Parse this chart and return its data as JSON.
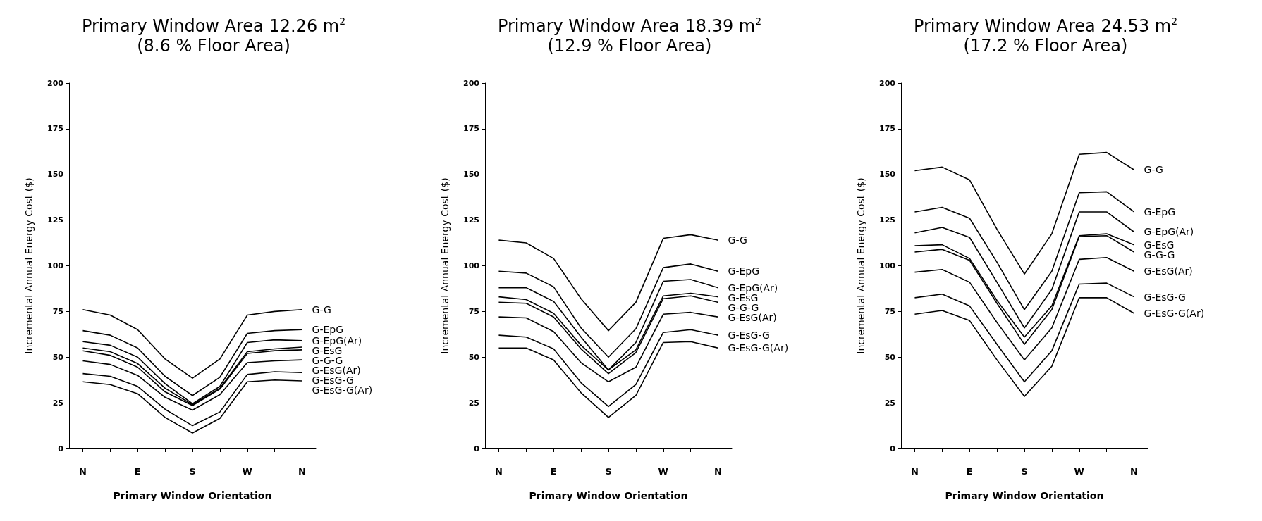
{
  "chart_data": [
    {
      "type": "line",
      "title": "Primary Window Area 12.26 m$^{2}$\n(8.6 % Floor Area)",
      "xlabel": "Primary Window Orientation",
      "ylabel": "Incremental Annual Energy Cost ($)",
      "categories": [
        "N",
        null,
        "E",
        null,
        "S",
        null,
        "W",
        null,
        "N"
      ],
      "ylim": [
        0,
        200
      ],
      "yticks": [
        0,
        25,
        50,
        75,
        100,
        125,
        150,
        175,
        200
      ],
      "grid": false,
      "legend": false,
      "marker": "none",
      "series": [
        {
          "name": "G-G",
          "color": "#000000",
          "values": [
            76,
            73,
            65,
            49,
            38.5,
            49,
            73,
            75,
            76
          ]
        },
        {
          "name": "G-EpG",
          "color": "#000000",
          "values": [
            64.5,
            62,
            55,
            39.5,
            29,
            39,
            63,
            64.5,
            65
          ]
        },
        {
          "name": "G-EpG(Ar)",
          "color": "#000000",
          "values": [
            58.5,
            56.5,
            50,
            35.5,
            24.5,
            34,
            58,
            59.5,
            59
          ]
        },
        {
          "name": "G-EsG",
          "color": "#000000",
          "values": [
            55,
            53,
            46.5,
            33,
            24,
            33,
            53,
            54.5,
            55.5
          ]
        },
        {
          "name": "G-G-G",
          "color": "#000000",
          "values": [
            53.5,
            51,
            44.5,
            31,
            23.5,
            32.5,
            52,
            53.5,
            54
          ]
        },
        {
          "name": "G-EsG(Ar)",
          "color": "#000000",
          "values": [
            48,
            46,
            40,
            28,
            21,
            29.5,
            47,
            48,
            48.5
          ]
        },
        {
          "name": "G-EsG-G",
          "color": "#000000",
          "values": [
            41,
            39.5,
            34,
            21.5,
            12.5,
            20,
            40.5,
            42,
            41.5
          ]
        },
        {
          "name": "G-EsG-G(Ar)",
          "color": "#000000",
          "values": [
            36.5,
            35,
            30,
            17,
            8.5,
            16.5,
            36.5,
            37.5,
            37
          ]
        }
      ]
    },
    {
      "type": "line",
      "title": "Primary Window Area 18.39 m$^{2}$\n(12.9 % Floor Area)",
      "xlabel": "Primary Window Orientation",
      "ylabel": "Incremental Annual Energy Cost ($)",
      "categories": [
        "N",
        null,
        "E",
        null,
        "S",
        null,
        "W",
        null,
        "N"
      ],
      "ylim": [
        0,
        200
      ],
      "yticks": [
        0,
        25,
        50,
        75,
        100,
        125,
        150,
        175,
        200
      ],
      "grid": false,
      "legend": false,
      "marker": "none",
      "series": [
        {
          "name": "G-G",
          "color": "#000000",
          "values": [
            114,
            112.5,
            104,
            82,
            64.5,
            80,
            115,
            117,
            114
          ]
        },
        {
          "name": "G-EpG",
          "color": "#000000",
          "values": [
            97,
            96,
            88.5,
            66,
            50,
            65.5,
            99,
            101,
            97
          ]
        },
        {
          "name": "G-EpG(Ar)",
          "color": "#000000",
          "values": [
            88,
            88,
            80.5,
            61,
            43,
            58,
            91.5,
            92.5,
            88
          ]
        },
        {
          "name": "G-EsG",
          "color": "#000000",
          "values": [
            83,
            81.5,
            74,
            56.5,
            43,
            54,
            83.5,
            85,
            83
          ]
        },
        {
          "name": "G-G-G",
          "color": "#000000",
          "values": [
            80,
            79.5,
            72,
            54.5,
            41,
            52.5,
            82,
            83.5,
            80
          ]
        },
        {
          "name": "G-EsG(Ar)",
          "color": "#000000",
          "values": [
            72,
            71.5,
            64,
            47,
            36.5,
            44.5,
            73.5,
            74.5,
            72
          ]
        },
        {
          "name": "G-EsG-G",
          "color": "#000000",
          "values": [
            62,
            61,
            54.5,
            36,
            23,
            35,
            63.5,
            65,
            62
          ]
        },
        {
          "name": "G-EsG-G(Ar)",
          "color": "#000000",
          "values": [
            55,
            55,
            48.5,
            30.5,
            17,
            29,
            58,
            58.5,
            55
          ]
        }
      ]
    },
    {
      "type": "line",
      "title": "Primary Window Area 24.53 m$^{2}$\n(17.2 % Floor Area)",
      "xlabel": "Primary Window Orientation",
      "ylabel": "Incremental Annual Energy Cost ($)",
      "categories": [
        "N",
        null,
        "E",
        null,
        "S",
        null,
        "W",
        null,
        "N"
      ],
      "ylim": [
        0,
        200
      ],
      "yticks": [
        0,
        25,
        50,
        75,
        100,
        125,
        150,
        175,
        200
      ],
      "grid": false,
      "legend": false,
      "marker": "none",
      "series": [
        {
          "name": "G-G",
          "color": "#000000",
          "values": [
            152,
            154,
            147,
            120,
            95.5,
            117.5,
            161,
            162,
            152.5
          ]
        },
        {
          "name": "G-EpG",
          "color": "#000000",
          "values": [
            129.5,
            132,
            126,
            102,
            76,
            97,
            140,
            140.5,
            129.5
          ]
        },
        {
          "name": "G-EpG(Ar)",
          "color": "#000000",
          "values": [
            118,
            121,
            115.5,
            91,
            66,
            87,
            129.5,
            129.5,
            118.5
          ]
        },
        {
          "name": "G-EsG",
          "color": "#000000",
          "values": [
            111,
            111.5,
            104,
            81,
            61,
            78,
            116.5,
            117.5,
            111.5
          ]
        },
        {
          "name": "G-G-G",
          "color": "#000000",
          "values": [
            107.5,
            109,
            103,
            79.5,
            57,
            76,
            116,
            116.5,
            107.5
          ]
        },
        {
          "name": "G-EsG(Ar)",
          "color": "#000000",
          "values": [
            96.5,
            98,
            91,
            69,
            48.5,
            66,
            103.5,
            104.5,
            97
          ]
        },
        {
          "name": "G-EsG-G",
          "color": "#000000",
          "values": [
            82.5,
            84.5,
            78,
            57,
            36.5,
            53.5,
            90,
            90.5,
            83
          ]
        },
        {
          "name": "G-EsG-G(Ar)",
          "color": "#000000",
          "values": [
            73.5,
            75.5,
            70,
            48.5,
            28.5,
            45,
            82.5,
            82.5,
            74
          ]
        }
      ]
    }
  ]
}
